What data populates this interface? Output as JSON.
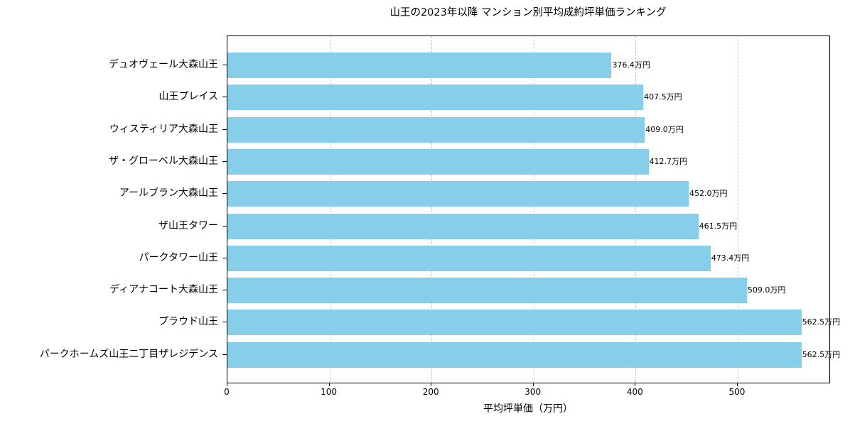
{
  "chart_data": {
    "type": "bar",
    "orientation": "horizontal",
    "title": "山王の2023年以降 マンション別平均成約坪単価ランキング",
    "xlabel": "平均坪単価（万円）",
    "ylabel": "",
    "xlim": [
      0,
      590.6
    ],
    "xticks": [
      0,
      100,
      200,
      300,
      400,
      500
    ],
    "grid": "x-dashed",
    "bar_color": "#87ceeb",
    "value_suffix": "万円",
    "categories": [
      "デュオヴェール大森山王",
      "山王プレイス",
      "ウィスティリア大森山王",
      "ザ・グローベル大森山王",
      "アールブラン大森山王",
      "ザ山王タワー",
      "パークタワー山王",
      "ディアナコート大森山王",
      "プラウド山王",
      "パークホームズ山王二丁目ザレジデンス"
    ],
    "values": [
      376.4,
      407.5,
      409.0,
      412.7,
      452.0,
      461.5,
      473.4,
      509.0,
      562.5,
      562.5
    ],
    "labels": [
      "376.4万円",
      "407.5万円",
      "409.0万円",
      "412.7万円",
      "452.0万円",
      "461.5万円",
      "473.4万円",
      "509.0万円",
      "562.5万円",
      "562.5万円"
    ]
  }
}
